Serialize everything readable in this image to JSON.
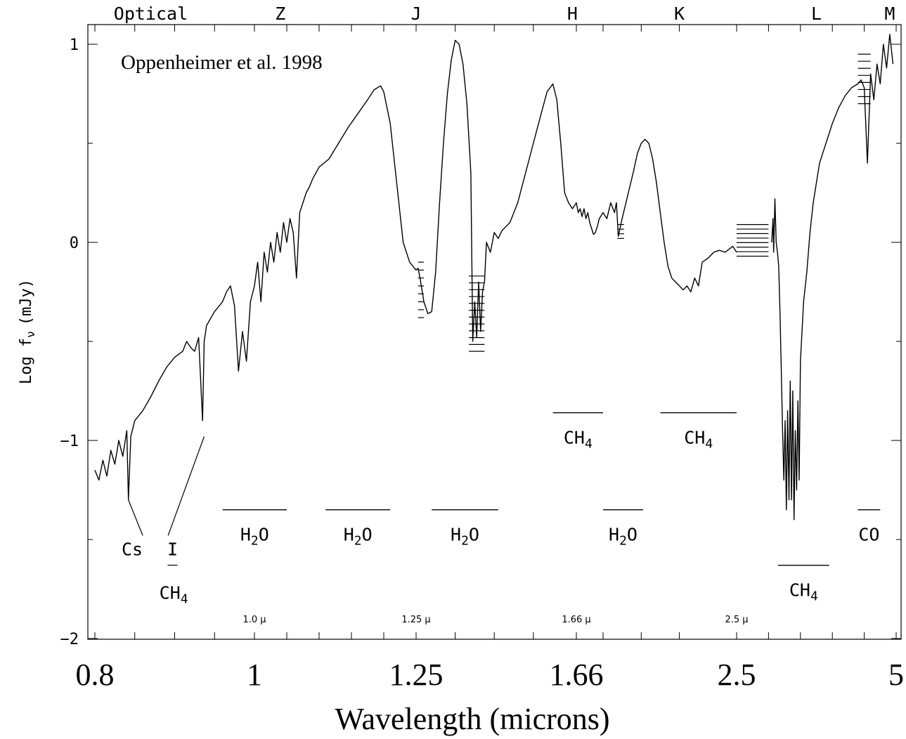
{
  "chart_data": {
    "type": "line",
    "annotation": "Oppenheimer et al. 1998",
    "ylabel": "Log f",
    "ylabel_sub": "ν",
    "ylabel_unit": "(mJy)",
    "xlabel": "Wavelength (microns)",
    "ylim": [
      -2,
      1.1
    ],
    "y_ticks": [
      {
        "value": 1,
        "label": "1"
      },
      {
        "value": 0,
        "label": "0"
      },
      {
        "value": -1,
        "label": "−1"
      },
      {
        "value": -2,
        "label": "−2"
      }
    ],
    "x_ticks": [
      {
        "value": 0.8,
        "label": "0.8"
      },
      {
        "value": 1.0,
        "label": "1"
      },
      {
        "value": 1.25,
        "label": "1.25"
      },
      {
        "value": 1.66,
        "label": "1.66"
      },
      {
        "value": 2.5,
        "label": "2.5"
      },
      {
        "value": 5.0,
        "label": "5"
      }
    ],
    "inner_x_labels": [
      {
        "value": 1.0,
        "label": "1.0 μ"
      },
      {
        "value": 1.25,
        "label": "1.25 μ"
      },
      {
        "value": 1.66,
        "label": "1.66 μ"
      },
      {
        "value": 2.5,
        "label": "2.5 μ"
      }
    ],
    "bands": [
      {
        "name": "Optical",
        "x": 0.87
      },
      {
        "name": "Z",
        "x": 1.04
      },
      {
        "name": "J",
        "x": 1.25
      },
      {
        "name": "H",
        "x": 1.65
      },
      {
        "name": "K",
        "x": 2.2
      },
      {
        "name": "L",
        "x": 3.75
      },
      {
        "name": "M",
        "x": 4.9
      }
    ],
    "absorption_features": [
      {
        "species": "H",
        "sub": "2",
        "tail": "O",
        "x_start": 0.96,
        "x_end": 1.05,
        "level": -1.35
      },
      {
        "species": "H",
        "sub": "2",
        "tail": "O",
        "x_start": 1.11,
        "x_end": 1.21,
        "level": -1.35
      },
      {
        "species": "H",
        "sub": "2",
        "tail": "O",
        "x_start": 1.29,
        "x_end": 1.46,
        "level": -1.35
      },
      {
        "species": "H",
        "sub": "2",
        "tail": "O",
        "x_start": 1.8,
        "x_end": 2.01,
        "level": -1.35
      },
      {
        "species": "CH",
        "sub": "4",
        "tail": "",
        "x_start": 1.6,
        "x_end": 1.8,
        "level": -0.86
      },
      {
        "species": "CH",
        "sub": "4",
        "tail": "",
        "x_start": 2.1,
        "x_end": 2.5,
        "level": -0.86
      },
      {
        "species": "CH",
        "sub": "4",
        "tail": "",
        "x_start": 3.15,
        "x_end": 3.95,
        "level": -1.63
      },
      {
        "species": "CO",
        "sub": "",
        "tail": "",
        "x_start": 4.4,
        "x_end": 4.75,
        "level": -1.35
      }
    ],
    "atomic_labels": [
      {
        "species": "Cs",
        "sub": "",
        "tail": "",
        "x": 0.86,
        "level": -1.58
      },
      {
        "species": "I",
        "sub": "",
        "tail": "",
        "x": 0.885,
        "level": -1.58
      },
      {
        "species": "CH",
        "sub": "4",
        "tail": "",
        "x": 0.89,
        "level": -1.8
      }
    ],
    "series": [
      {
        "values": [
          [
            0.8,
            -1.15
          ],
          [
            0.805,
            -1.2
          ],
          [
            0.81,
            -1.1
          ],
          [
            0.815,
            -1.18
          ],
          [
            0.82,
            -1.05
          ],
          [
            0.825,
            -1.12
          ],
          [
            0.83,
            -1.0
          ],
          [
            0.835,
            -1.08
          ],
          [
            0.84,
            -0.95
          ],
          [
            0.842,
            -1.3
          ],
          [
            0.845,
            -0.98
          ],
          [
            0.85,
            -0.9
          ],
          [
            0.86,
            -0.85
          ],
          [
            0.87,
            -0.78
          ],
          [
            0.88,
            -0.7
          ],
          [
            0.89,
            -0.63
          ],
          [
            0.9,
            -0.58
          ],
          [
            0.91,
            -0.55
          ],
          [
            0.915,
            -0.5
          ],
          [
            0.92,
            -0.53
          ],
          [
            0.925,
            -0.55
          ],
          [
            0.93,
            -0.48
          ],
          [
            0.935,
            -0.9
          ],
          [
            0.937,
            -0.5
          ],
          [
            0.94,
            -0.42
          ],
          [
            0.95,
            -0.35
          ],
          [
            0.96,
            -0.3
          ],
          [
            0.965,
            -0.25
          ],
          [
            0.97,
            -0.22
          ],
          [
            0.975,
            -0.32
          ],
          [
            0.98,
            -0.65
          ],
          [
            0.985,
            -0.45
          ],
          [
            0.99,
            -0.6
          ],
          [
            0.995,
            -0.3
          ],
          [
            1.0,
            -0.22
          ],
          [
            1.005,
            -0.1
          ],
          [
            1.01,
            -0.3
          ],
          [
            1.015,
            -0.05
          ],
          [
            1.02,
            -0.15
          ],
          [
            1.025,
            0.0
          ],
          [
            1.03,
            -0.1
          ],
          [
            1.035,
            0.05
          ],
          [
            1.04,
            -0.05
          ],
          [
            1.045,
            0.1
          ],
          [
            1.05,
            0.0
          ],
          [
            1.055,
            0.12
          ],
          [
            1.06,
            0.05
          ],
          [
            1.065,
            -0.18
          ],
          [
            1.07,
            0.15
          ],
          [
            1.075,
            0.2
          ],
          [
            1.08,
            0.25
          ],
          [
            1.085,
            0.28
          ],
          [
            1.09,
            0.32
          ],
          [
            1.1,
            0.38
          ],
          [
            1.115,
            0.42
          ],
          [
            1.13,
            0.5
          ],
          [
            1.145,
            0.58
          ],
          [
            1.16,
            0.65
          ],
          [
            1.175,
            0.72
          ],
          [
            1.185,
            0.77
          ],
          [
            1.195,
            0.79
          ],
          [
            1.2,
            0.76
          ],
          [
            1.21,
            0.6
          ],
          [
            1.22,
            0.3
          ],
          [
            1.23,
            0.0
          ],
          [
            1.24,
            -0.1
          ],
          [
            1.25,
            -0.14
          ],
          [
            1.255,
            -0.13
          ],
          [
            1.26,
            -0.18
          ],
          [
            1.27,
            -0.3
          ],
          [
            1.28,
            -0.36
          ],
          [
            1.29,
            -0.35
          ],
          [
            1.3,
            -0.15
          ],
          [
            1.31,
            0.2
          ],
          [
            1.32,
            0.5
          ],
          [
            1.33,
            0.75
          ],
          [
            1.34,
            0.92
          ],
          [
            1.35,
            1.02
          ],
          [
            1.36,
            1.0
          ],
          [
            1.37,
            0.9
          ],
          [
            1.38,
            0.7
          ],
          [
            1.39,
            0.35
          ],
          [
            1.395,
            -0.5
          ],
          [
            1.4,
            -0.3
          ],
          [
            1.405,
            -0.48
          ],
          [
            1.41,
            -0.2
          ],
          [
            1.415,
            -0.45
          ],
          [
            1.42,
            -0.25
          ],
          [
            1.425,
            -0.2
          ],
          [
            1.43,
            0.0
          ],
          [
            1.44,
            -0.05
          ],
          [
            1.45,
            0.05
          ],
          [
            1.46,
            0.02
          ],
          [
            1.47,
            0.06
          ],
          [
            1.49,
            0.1
          ],
          [
            1.51,
            0.2
          ],
          [
            1.53,
            0.35
          ],
          [
            1.55,
            0.5
          ],
          [
            1.57,
            0.65
          ],
          [
            1.585,
            0.76
          ],
          [
            1.6,
            0.8
          ],
          [
            1.61,
            0.72
          ],
          [
            1.62,
            0.5
          ],
          [
            1.63,
            0.25
          ],
          [
            1.64,
            0.2
          ],
          [
            1.65,
            0.17
          ],
          [
            1.66,
            0.2
          ],
          [
            1.67,
            0.15
          ],
          [
            1.68,
            0.17
          ],
          [
            1.69,
            0.13
          ],
          [
            1.7,
            0.17
          ],
          [
            1.71,
            0.12
          ],
          [
            1.72,
            0.15
          ],
          [
            1.73,
            0.1
          ],
          [
            1.74,
            0.07
          ],
          [
            1.75,
            0.04
          ],
          [
            1.76,
            0.05
          ],
          [
            1.77,
            0.08
          ],
          [
            1.78,
            0.12
          ],
          [
            1.8,
            0.15
          ],
          [
            1.82,
            0.12
          ],
          [
            1.84,
            0.2
          ],
          [
            1.86,
            0.15
          ],
          [
            1.87,
            0.2
          ],
          [
            1.88,
            0.03
          ],
          [
            1.9,
            0.12
          ],
          [
            1.92,
            0.2
          ],
          [
            1.94,
            0.28
          ],
          [
            1.96,
            0.36
          ],
          [
            1.98,
            0.45
          ],
          [
            2.0,
            0.5
          ],
          [
            2.02,
            0.52
          ],
          [
            2.04,
            0.5
          ],
          [
            2.06,
            0.42
          ],
          [
            2.08,
            0.3
          ],
          [
            2.1,
            0.15
          ],
          [
            2.12,
            0.0
          ],
          [
            2.14,
            -0.12
          ],
          [
            2.16,
            -0.18
          ],
          [
            2.18,
            -0.2
          ],
          [
            2.2,
            -0.22
          ],
          [
            2.22,
            -0.24
          ],
          [
            2.24,
            -0.22
          ],
          [
            2.26,
            -0.25
          ],
          [
            2.28,
            -0.18
          ],
          [
            2.3,
            -0.22
          ],
          [
            2.32,
            -0.1
          ],
          [
            2.35,
            -0.08
          ],
          [
            2.38,
            -0.05
          ],
          [
            2.41,
            -0.04
          ],
          [
            2.44,
            -0.05
          ],
          [
            2.48,
            -0.02
          ],
          [
            2.5,
            -0.05
          ]
        ]
      },
      {
        "values": [
          [
            3.05,
            0.0
          ],
          [
            3.07,
            0.12
          ],
          [
            3.08,
            -0.05
          ],
          [
            3.1,
            0.22
          ],
          [
            3.12,
            0.0
          ],
          [
            3.14,
            -0.05
          ],
          [
            3.16,
            -0.12
          ],
          [
            3.18,
            -0.35
          ],
          [
            3.2,
            -0.65
          ],
          [
            3.22,
            -0.95
          ],
          [
            3.24,
            -1.2
          ],
          [
            3.26,
            -0.9
          ],
          [
            3.28,
            -1.35
          ],
          [
            3.3,
            -0.85
          ],
          [
            3.32,
            -1.3
          ],
          [
            3.34,
            -0.7
          ],
          [
            3.36,
            -1.3
          ],
          [
            3.38,
            -0.75
          ],
          [
            3.4,
            -1.4
          ],
          [
            3.42,
            -0.95
          ],
          [
            3.44,
            -1.25
          ],
          [
            3.46,
            -0.8
          ],
          [
            3.48,
            -1.2
          ],
          [
            3.5,
            -0.6
          ],
          [
            3.55,
            -0.3
          ],
          [
            3.6,
            -0.15
          ],
          [
            3.65,
            0.05
          ],
          [
            3.7,
            0.2
          ],
          [
            3.75,
            0.3
          ],
          [
            3.8,
            0.4
          ],
          [
            3.9,
            0.5
          ],
          [
            4.0,
            0.6
          ],
          [
            4.1,
            0.68
          ],
          [
            4.2,
            0.74
          ],
          [
            4.3,
            0.78
          ],
          [
            4.4,
            0.8
          ],
          [
            4.45,
            0.82
          ],
          [
            4.5,
            0.78
          ],
          [
            4.55,
            0.4
          ],
          [
            4.6,
            0.85
          ],
          [
            4.65,
            0.72
          ],
          [
            4.7,
            0.9
          ],
          [
            4.75,
            0.8
          ],
          [
            4.8,
            1.0
          ],
          [
            4.85,
            0.88
          ],
          [
            4.9,
            1.05
          ],
          [
            4.95,
            0.9
          ]
        ]
      }
    ],
    "limit_markers": [
      {
        "x_start": 1.255,
        "x_end": 1.27,
        "y_top": -0.1,
        "y_bottom": -0.38,
        "count": 8
      },
      {
        "x_start": 1.385,
        "x_end": 1.425,
        "y_top": -0.17,
        "y_bottom": -0.55,
        "count": 12
      },
      {
        "x_start": 1.875,
        "x_end": 1.91,
        "y_top": 0.09,
        "y_bottom": 0.02,
        "count": 4
      },
      {
        "x_start": 2.5,
        "x_end": 3.0,
        "y_top": 0.09,
        "y_bottom": -0.07,
        "count": 8
      },
      {
        "x_start": 4.4,
        "x_end": 4.6,
        "y_top": 0.95,
        "y_bottom": 0.7,
        "count": 8
      }
    ]
  }
}
